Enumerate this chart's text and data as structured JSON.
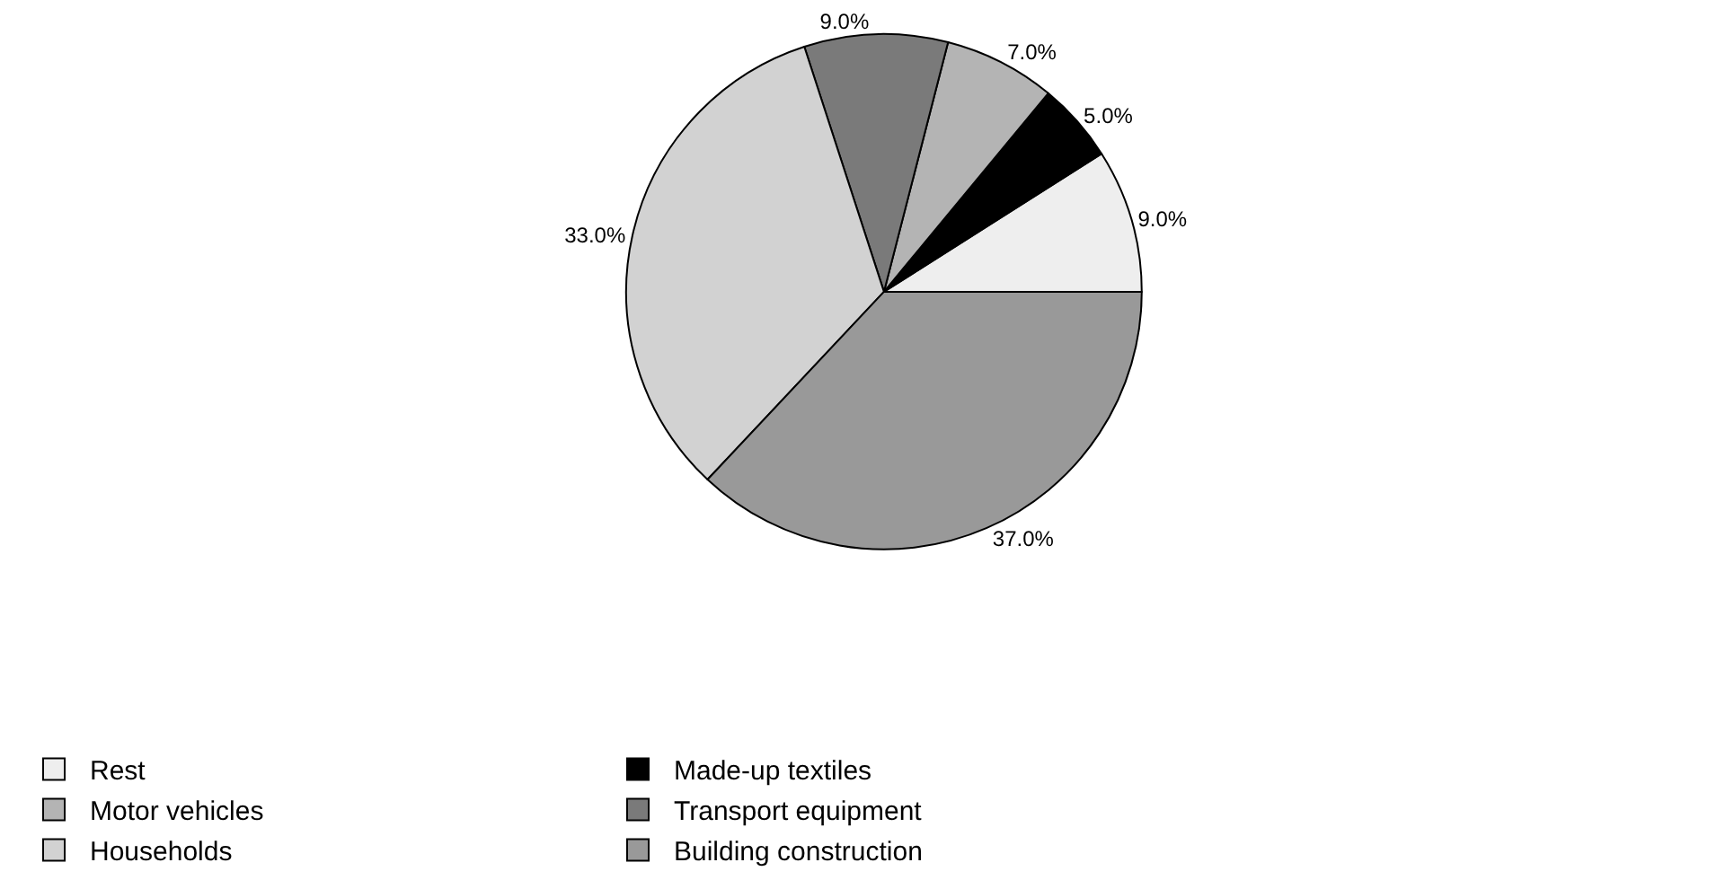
{
  "chart_data": {
    "type": "pie",
    "categories": [
      "Rest",
      "Made-up textiles",
      "Motor vehicles",
      "Transport equipment",
      "Households",
      "Building construction"
    ],
    "values": [
      9,
      5,
      7,
      9,
      33,
      37
    ],
    "value_labels": [
      "9.0%",
      "5.0%",
      "7.0%",
      "9.0%",
      "33.0%",
      "37.0%"
    ],
    "colors": [
      "#eeeeee",
      "#000000",
      "#b4b4b4",
      "#7a7a7a",
      "#d2d2d2",
      "#999999"
    ],
    "legend": "bottom"
  }
}
